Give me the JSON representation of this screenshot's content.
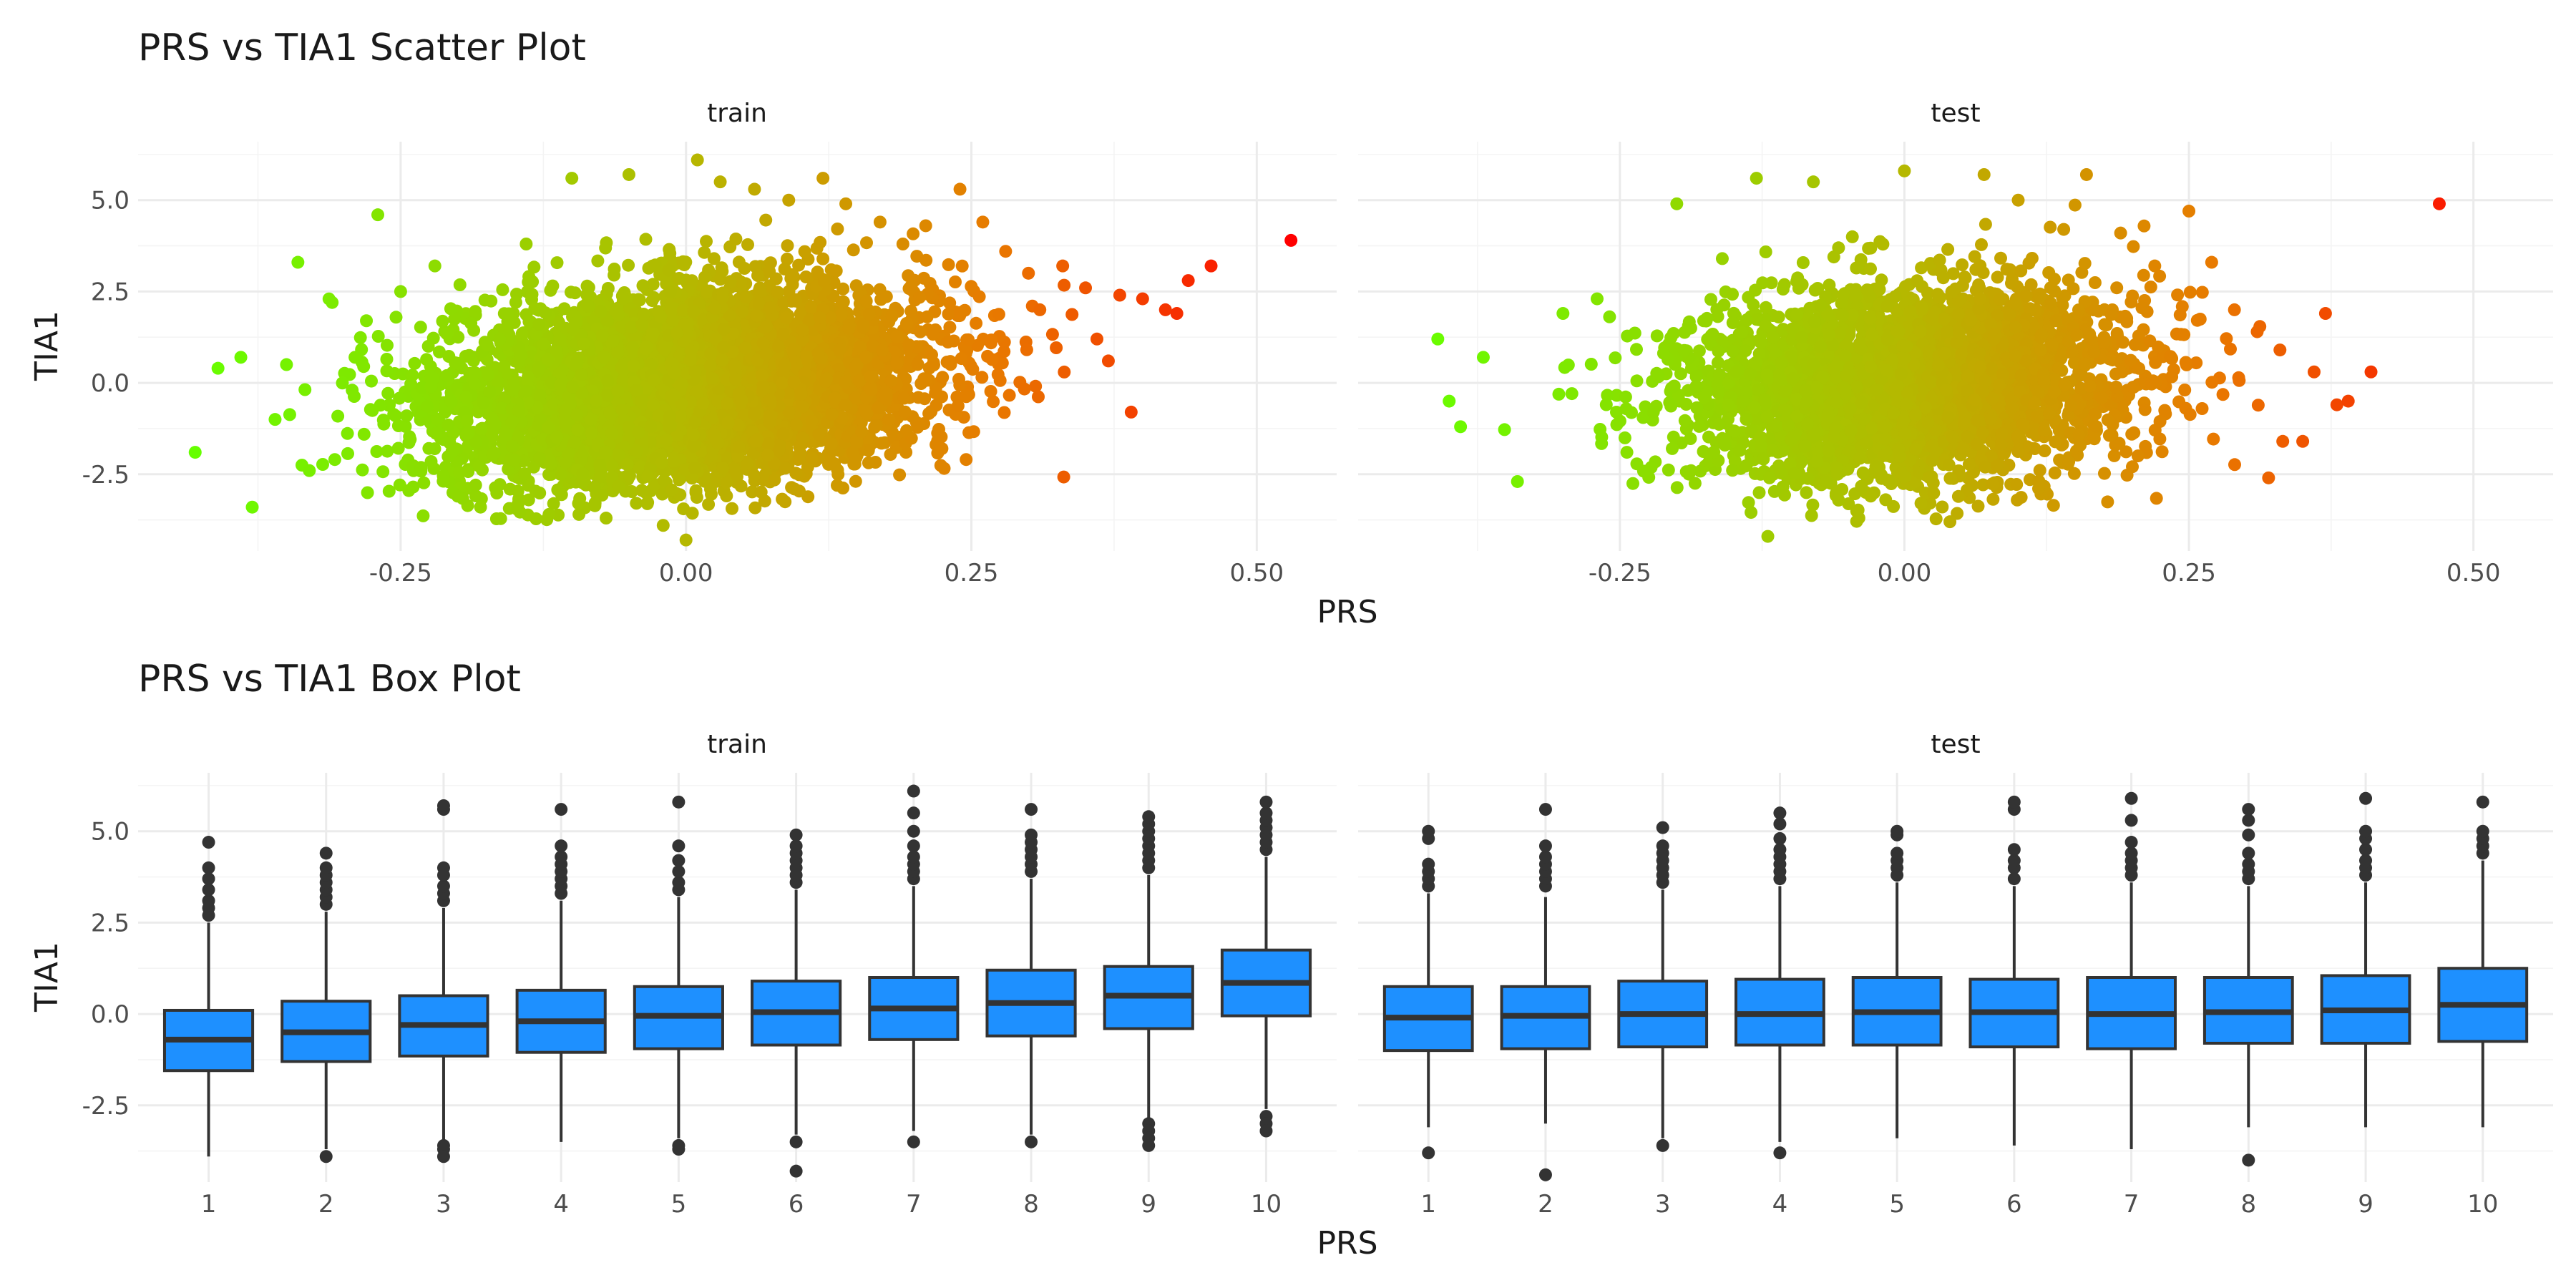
{
  "figure": {
    "colors": {
      "background": "#ffffff",
      "grid_major": "#ebebeb",
      "grid_minor": "#f4f4f4",
      "box_fill": "#1e90ff",
      "box_line": "#333333",
      "gradient_low": "#66ff00",
      "gradient_mid": "#b5b800",
      "gradient_high": "#ff0000"
    }
  },
  "chart_data": [
    {
      "type": "scatter",
      "title": "PRS vs TIA1 Scatter Plot",
      "xlabel": "PRS",
      "ylabel": "TIA1",
      "grid": true,
      "legend": "none",
      "color_encoding": "PRS",
      "facets": [
        {
          "label": "train",
          "xlim": [
            -0.48,
            0.57
          ],
          "ylim": [
            -4.6,
            6.6
          ],
          "x_ticks": [
            -0.25,
            0.0,
            0.25,
            0.5
          ],
          "x_tick_labels": [
            "-0.25",
            "0.00",
            "0.25",
            "0.50"
          ],
          "y_ticks": [
            -2.5,
            0.0,
            2.5,
            5.0
          ],
          "y_tick_labels": [
            "-2.5",
            "0.0",
            "2.5",
            "5.0"
          ],
          "points": [
            [
              -0.43,
              -1.9
            ],
            [
              -0.41,
              0.4
            ],
            [
              -0.39,
              0.7
            ],
            [
              -0.38,
              -3.4
            ],
            [
              -0.36,
              -1.0
            ],
            [
              -0.35,
              0.5
            ],
            [
              -0.34,
              3.3
            ],
            [
              -0.33,
              -2.4
            ],
            [
              -0.31,
              2.2
            ],
            [
              -0.29,
              0.7
            ],
            [
              -0.28,
              1.7
            ],
            [
              -0.27,
              4.6
            ],
            [
              -0.25,
              2.5
            ],
            [
              -0.22,
              3.2
            ],
            [
              -0.2,
              -3.1
            ],
            [
              -0.18,
              -3.4
            ],
            [
              -0.14,
              3.8
            ],
            [
              -0.12,
              -3.6
            ],
            [
              -0.1,
              5.6
            ],
            [
              -0.07,
              -3.7
            ],
            [
              -0.05,
              5.7
            ],
            [
              -0.02,
              -3.9
            ],
            [
              0.0,
              -4.3
            ],
            [
              0.01,
              6.1
            ],
            [
              0.03,
              5.5
            ],
            [
              0.06,
              5.3
            ],
            [
              0.09,
              5.0
            ],
            [
              0.12,
              5.6
            ],
            [
              0.14,
              4.9
            ],
            [
              0.17,
              4.4
            ],
            [
              0.19,
              3.8
            ],
            [
              0.21,
              4.3
            ],
            [
              0.24,
              5.3
            ],
            [
              0.26,
              4.4
            ],
            [
              0.28,
              3.6
            ],
            [
              0.3,
              3.0
            ],
            [
              0.31,
              2.0
            ],
            [
              0.33,
              3.2
            ],
            [
              0.35,
              2.6
            ],
            [
              0.36,
              1.2
            ],
            [
              0.37,
              0.6
            ],
            [
              0.38,
              2.4
            ],
            [
              0.4,
              2.3
            ],
            [
              0.42,
              2.0
            ],
            [
              0.43,
              1.9
            ],
            [
              0.44,
              2.8
            ],
            [
              0.46,
              3.2
            ],
            [
              0.39,
              -0.8
            ],
            [
              0.53,
              3.9
            ]
          ]
        },
        {
          "label": "test",
          "xlim": [
            -0.48,
            0.57
          ],
          "ylim": [
            -4.6,
            6.6
          ],
          "x_ticks": [
            -0.25,
            0.0,
            0.25,
            0.5
          ],
          "x_tick_labels": [
            "-0.25",
            "0.00",
            "0.25",
            "0.50"
          ],
          "y_ticks": [
            -2.5,
            0.0,
            2.5,
            5.0
          ],
          "y_tick_labels": [
            "-2.5",
            "0.0",
            "2.5",
            "5.0"
          ],
          "points": [
            [
              -0.41,
              1.2
            ],
            [
              -0.4,
              -0.5
            ],
            [
              -0.39,
              -1.2
            ],
            [
              -0.37,
              0.7
            ],
            [
              -0.34,
              -2.7
            ],
            [
              -0.3,
              1.9
            ],
            [
              -0.27,
              2.3
            ],
            [
              -0.2,
              4.9
            ],
            [
              -0.16,
              3.4
            ],
            [
              -0.13,
              5.6
            ],
            [
              -0.12,
              -4.2
            ],
            [
              -0.08,
              5.5
            ],
            [
              -0.04,
              -3.7
            ],
            [
              0.0,
              5.8
            ],
            [
              0.04,
              -3.8
            ],
            [
              0.07,
              5.7
            ],
            [
              0.1,
              5.0
            ],
            [
              0.14,
              4.2
            ],
            [
              0.16,
              5.7
            ],
            [
              0.19,
              4.1
            ],
            [
              0.22,
              3.2
            ],
            [
              0.25,
              4.7
            ],
            [
              0.27,
              3.3
            ],
            [
              0.29,
              2.0
            ],
            [
              0.31,
              1.4
            ],
            [
              0.32,
              -2.6
            ],
            [
              0.33,
              0.9
            ],
            [
              0.35,
              -1.6
            ],
            [
              0.36,
              0.3
            ],
            [
              0.37,
              1.9
            ],
            [
              0.38,
              -0.6
            ],
            [
              0.39,
              -0.5
            ],
            [
              0.41,
              0.3
            ],
            [
              0.47,
              4.9
            ]
          ]
        }
      ]
    },
    {
      "type": "box",
      "title": "PRS vs TIA1 Box Plot",
      "xlabel": "PRS",
      "ylabel": "TIA1",
      "grid": true,
      "legend": "none",
      "categories": [
        "1",
        "2",
        "3",
        "4",
        "5",
        "6",
        "7",
        "8",
        "9",
        "10"
      ],
      "facets": [
        {
          "label": "train",
          "ylim": [
            -4.6,
            6.6
          ],
          "y_ticks": [
            -2.5,
            0.0,
            2.5,
            5.0
          ],
          "y_tick_labels": [
            "-2.5",
            "0.0",
            "2.5",
            "5.0"
          ],
          "boxes": [
            {
              "q1": -1.55,
              "median": -0.7,
              "q3": 0.1,
              "lower": -3.9,
              "upper": 2.5,
              "outliers": [
                2.7,
                2.9,
                3.1,
                3.4,
                3.7,
                4.0,
                4.7
              ]
            },
            {
              "q1": -1.3,
              "median": -0.5,
              "q3": 0.35,
              "lower": -3.7,
              "upper": 2.8,
              "outliers": [
                -3.9,
                3.0,
                3.2,
                3.4,
                3.6,
                3.8,
                4.0,
                4.4
              ]
            },
            {
              "q1": -1.15,
              "median": -0.3,
              "q3": 0.5,
              "lower": -3.5,
              "upper": 2.9,
              "outliers": [
                -3.6,
                -3.7,
                -3.9,
                3.1,
                3.3,
                3.5,
                3.8,
                4.0,
                5.6,
                5.7
              ]
            },
            {
              "q1": -1.05,
              "median": -0.2,
              "q3": 0.65,
              "lower": -3.5,
              "upper": 3.1,
              "outliers": [
                3.3,
                3.5,
                3.7,
                3.9,
                4.1,
                4.3,
                4.6,
                5.6
              ]
            },
            {
              "q1": -0.95,
              "median": -0.05,
              "q3": 0.75,
              "lower": -3.4,
              "upper": 3.2,
              "outliers": [
                -3.6,
                -3.7,
                3.4,
                3.6,
                3.9,
                4.2,
                4.6,
                5.8
              ]
            },
            {
              "q1": -0.85,
              "median": 0.05,
              "q3": 0.9,
              "lower": -3.3,
              "upper": 3.4,
              "outliers": [
                -3.5,
                -4.3,
                3.6,
                3.8,
                4.0,
                4.2,
                4.4,
                4.6,
                4.9
              ]
            },
            {
              "q1": -0.7,
              "median": 0.15,
              "q3": 1.0,
              "lower": -3.2,
              "upper": 3.5,
              "outliers": [
                -3.5,
                3.7,
                3.9,
                4.1,
                4.3,
                4.6,
                5.0,
                5.5,
                6.1
              ]
            },
            {
              "q1": -0.6,
              "median": 0.3,
              "q3": 1.2,
              "lower": -3.3,
              "upper": 3.7,
              "outliers": [
                -3.5,
                3.9,
                4.1,
                4.3,
                4.5,
                4.7,
                4.9,
                5.6
              ]
            },
            {
              "q1": -0.4,
              "median": 0.5,
              "q3": 1.3,
              "lower": -2.9,
              "upper": 3.8,
              "outliers": [
                -3.0,
                -3.2,
                -3.4,
                -3.6,
                4.0,
                4.2,
                4.4,
                4.6,
                4.8,
                5.0,
                5.2,
                5.4
              ]
            },
            {
              "q1": -0.05,
              "median": 0.85,
              "q3": 1.75,
              "lower": -2.6,
              "upper": 4.3,
              "outliers": [
                -2.8,
                -3.0,
                -3.2,
                4.5,
                4.7,
                4.9,
                5.1,
                5.3,
                5.5,
                5.8
              ]
            }
          ]
        },
        {
          "label": "test",
          "ylim": [
            -4.6,
            6.6
          ],
          "y_ticks": [
            -2.5,
            0.0,
            2.5,
            5.0
          ],
          "y_tick_labels": [
            "-2.5",
            "0.0",
            "2.5",
            "5.0"
          ],
          "boxes": [
            {
              "q1": -1.0,
              "median": -0.1,
              "q3": 0.75,
              "lower": -3.1,
              "upper": 3.3,
              "outliers": [
                -3.8,
                3.5,
                3.7,
                3.9,
                4.1,
                4.8,
                5.0
              ]
            },
            {
              "q1": -0.95,
              "median": -0.05,
              "q3": 0.75,
              "lower": -3.0,
              "upper": 3.2,
              "outliers": [
                -4.4,
                3.5,
                3.7,
                3.9,
                4.1,
                4.3,
                4.6,
                5.6
              ]
            },
            {
              "q1": -0.9,
              "median": 0.0,
              "q3": 0.9,
              "lower": -3.4,
              "upper": 3.4,
              "outliers": [
                -3.6,
                3.6,
                3.8,
                4.0,
                4.2,
                4.4,
                4.6,
                5.1
              ]
            },
            {
              "q1": -0.85,
              "median": 0.0,
              "q3": 0.95,
              "lower": -3.5,
              "upper": 3.5,
              "outliers": [
                -3.8,
                3.7,
                3.9,
                4.1,
                4.3,
                4.5,
                4.8,
                5.2,
                5.5
              ]
            },
            {
              "q1": -0.85,
              "median": 0.05,
              "q3": 1.0,
              "lower": -3.4,
              "upper": 3.6,
              "outliers": [
                3.8,
                4.0,
                4.2,
                4.4,
                4.9,
                5.0
              ]
            },
            {
              "q1": -0.9,
              "median": 0.05,
              "q3": 0.95,
              "lower": -3.6,
              "upper": 3.5,
              "outliers": [
                3.7,
                4.0,
                4.2,
                4.5,
                5.6,
                5.8
              ]
            },
            {
              "q1": -0.95,
              "median": 0.0,
              "q3": 1.0,
              "lower": -3.7,
              "upper": 3.6,
              "outliers": [
                3.8,
                4.0,
                4.2,
                4.4,
                4.7,
                5.3,
                5.9
              ]
            },
            {
              "q1": -0.8,
              "median": 0.05,
              "q3": 1.0,
              "lower": -3.1,
              "upper": 3.5,
              "outliers": [
                -4.0,
                3.7,
                3.9,
                4.1,
                4.4,
                4.9,
                5.3,
                5.6
              ]
            },
            {
              "q1": -0.8,
              "median": 0.1,
              "q3": 1.05,
              "lower": -3.1,
              "upper": 3.6,
              "outliers": [
                3.8,
                4.0,
                4.2,
                4.5,
                4.8,
                5.0,
                5.9
              ]
            },
            {
              "q1": -0.75,
              "median": 0.25,
              "q3": 1.25,
              "lower": -3.1,
              "upper": 4.2,
              "outliers": [
                4.4,
                4.6,
                4.8,
                5.0,
                5.8
              ]
            }
          ]
        }
      ]
    }
  ]
}
